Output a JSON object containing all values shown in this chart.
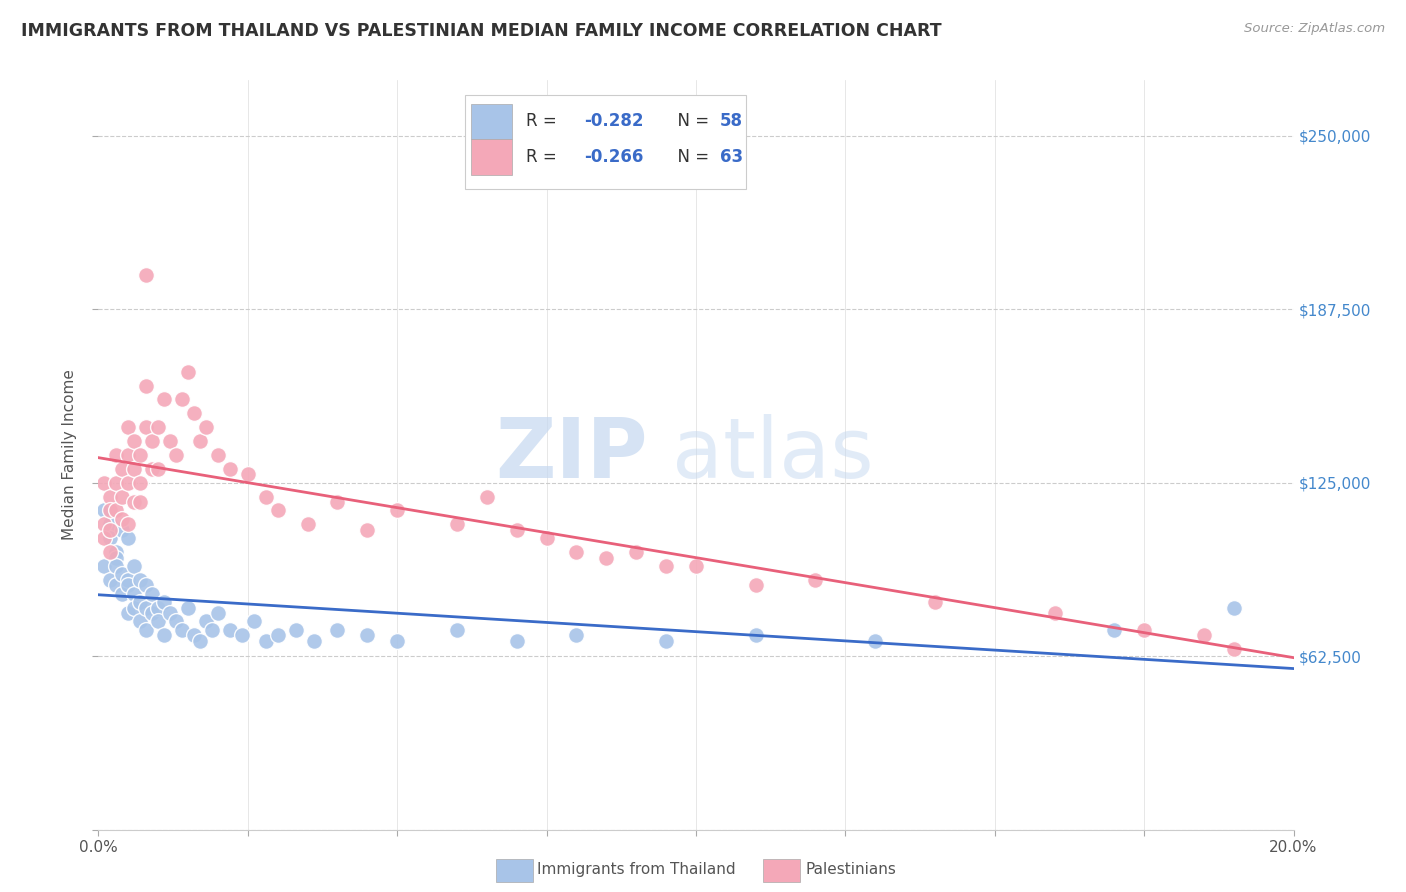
{
  "title": "IMMIGRANTS FROM THAILAND VS PALESTINIAN MEDIAN FAMILY INCOME CORRELATION CHART",
  "source": "Source: ZipAtlas.com",
  "ylabel": "Median Family Income",
  "xlim": [
    0.0,
    0.2
  ],
  "ylim": [
    0,
    270000
  ],
  "yticks": [
    0,
    62500,
    125000,
    187500,
    250000
  ],
  "ytick_labels": [
    "",
    "$62,500",
    "$125,000",
    "$187,500",
    "$250,000"
  ],
  "xticks": [
    0.0,
    0.025,
    0.05,
    0.075,
    0.1,
    0.125,
    0.15,
    0.175,
    0.2
  ],
  "color_thailand": "#a8c4e8",
  "color_palestinian": "#f4a8b8",
  "color_line_thailand": "#3a6bc8",
  "color_line_palestinian": "#e8607a",
  "background_color": "#ffffff",
  "watermark_zip": "ZIP",
  "watermark_atlas": "atlas",
  "thailand_x": [
    0.001,
    0.001,
    0.002,
    0.002,
    0.002,
    0.003,
    0.003,
    0.003,
    0.003,
    0.004,
    0.004,
    0.004,
    0.005,
    0.005,
    0.005,
    0.005,
    0.006,
    0.006,
    0.006,
    0.007,
    0.007,
    0.007,
    0.008,
    0.008,
    0.008,
    0.009,
    0.009,
    0.01,
    0.01,
    0.011,
    0.011,
    0.012,
    0.013,
    0.014,
    0.015,
    0.016,
    0.017,
    0.018,
    0.019,
    0.02,
    0.022,
    0.024,
    0.026,
    0.028,
    0.03,
    0.033,
    0.036,
    0.04,
    0.045,
    0.05,
    0.06,
    0.07,
    0.08,
    0.095,
    0.11,
    0.13,
    0.17,
    0.19
  ],
  "thailand_y": [
    115000,
    95000,
    110000,
    105000,
    90000,
    100000,
    98000,
    88000,
    95000,
    108000,
    85000,
    92000,
    105000,
    90000,
    88000,
    78000,
    95000,
    85000,
    80000,
    90000,
    82000,
    75000,
    88000,
    80000,
    72000,
    85000,
    78000,
    80000,
    75000,
    82000,
    70000,
    78000,
    75000,
    72000,
    80000,
    70000,
    68000,
    75000,
    72000,
    78000,
    72000,
    70000,
    75000,
    68000,
    70000,
    72000,
    68000,
    72000,
    70000,
    68000,
    72000,
    68000,
    70000,
    68000,
    70000,
    68000,
    72000,
    80000
  ],
  "palestinian_x": [
    0.001,
    0.001,
    0.001,
    0.002,
    0.002,
    0.002,
    0.002,
    0.003,
    0.003,
    0.003,
    0.004,
    0.004,
    0.004,
    0.005,
    0.005,
    0.005,
    0.005,
    0.006,
    0.006,
    0.006,
    0.007,
    0.007,
    0.007,
    0.008,
    0.008,
    0.008,
    0.009,
    0.009,
    0.01,
    0.01,
    0.011,
    0.012,
    0.013,
    0.014,
    0.015,
    0.016,
    0.017,
    0.018,
    0.02,
    0.022,
    0.025,
    0.028,
    0.03,
    0.035,
    0.04,
    0.045,
    0.05,
    0.06,
    0.065,
    0.07,
    0.075,
    0.08,
    0.085,
    0.09,
    0.095,
    0.1,
    0.11,
    0.12,
    0.14,
    0.16,
    0.175,
    0.185,
    0.19
  ],
  "palestinian_y": [
    125000,
    110000,
    105000,
    120000,
    115000,
    108000,
    100000,
    135000,
    125000,
    115000,
    130000,
    120000,
    112000,
    145000,
    135000,
    125000,
    110000,
    140000,
    130000,
    118000,
    135000,
    125000,
    118000,
    200000,
    160000,
    145000,
    140000,
    130000,
    145000,
    130000,
    155000,
    140000,
    135000,
    155000,
    165000,
    150000,
    140000,
    145000,
    135000,
    130000,
    128000,
    120000,
    115000,
    110000,
    118000,
    108000,
    115000,
    110000,
    120000,
    108000,
    105000,
    100000,
    98000,
    100000,
    95000,
    95000,
    88000,
    90000,
    82000,
    78000,
    72000,
    70000,
    65000
  ]
}
